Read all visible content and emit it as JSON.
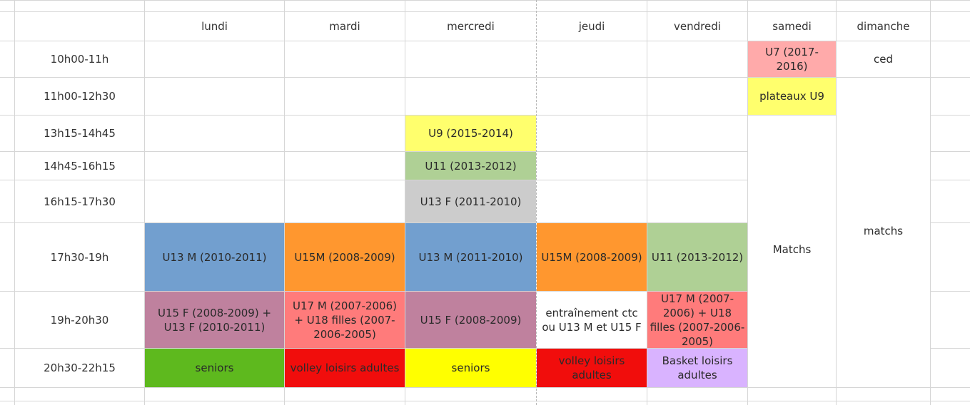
{
  "days": [
    "lundi",
    "mardi",
    "mercredi",
    "jeudi",
    "vendredi",
    "samedi",
    "dimanche"
  ],
  "times": [
    "10h00-11h",
    "11h00-12h30",
    "13h15-14h45",
    "14h45-16h15",
    "16h15-17h30",
    "17h30-19h",
    "19h-20h30",
    "20h30-22h15"
  ],
  "colors": {
    "blue": "#729fcf",
    "orange": "#ff972f",
    "green_light": "#afd095",
    "grey": "#cccccc",
    "yellow_soft": "#ffff6d",
    "yellow": "#ffff00",
    "purple": "#bf819e",
    "salmon": "#ff7b7b",
    "pink_light": "#ffaaaa",
    "green": "#5eb91e",
    "red": "#f10d0c",
    "lavender": "#d9b3ff"
  },
  "slots": [
    {
      "id": "sam-u7",
      "text": "U7 (2017-2016)",
      "color": "#ffaaaa"
    },
    {
      "id": "dim-ced",
      "text": "ced",
      "color": ""
    },
    {
      "id": "sam-plateaux",
      "text": "plateaux U9",
      "color": "#ffff6d"
    },
    {
      "id": "mer-u9",
      "text": "U9 (2015-2014)",
      "color": "#ffff6d"
    },
    {
      "id": "mer-u11",
      "text": "U11 (2013-2012)",
      "color": "#afd095"
    },
    {
      "id": "mer-u13f",
      "text": "U13 F (2011-2010)",
      "color": "#cccccc"
    },
    {
      "id": "lun-u13m",
      "text": "U13 M (2010-2011)",
      "color": "#729fcf"
    },
    {
      "id": "mar-u15m",
      "text": "U15M (2008-2009)",
      "color": "#ff972f"
    },
    {
      "id": "mer-u13m",
      "text": "U13 M (2011-2010)",
      "color": "#729fcf"
    },
    {
      "id": "jeu-u15m",
      "text": "U15M (2008-2009)",
      "color": "#ff972f"
    },
    {
      "id": "ven-u11",
      "text": "U11 (2013-2012)",
      "color": "#afd095"
    },
    {
      "id": "sam-matchs",
      "text": "Matchs",
      "color": ""
    },
    {
      "id": "dim-matchs",
      "text": "matchs",
      "color": ""
    },
    {
      "id": "lun-u15f",
      "text": "U15 F (2008-2009) + U13 F (2010-2011)",
      "color": "#bf819e"
    },
    {
      "id": "mar-u17",
      "text": "U17 M (2007-2006) + U18 filles (2007-2006-2005)",
      "color": "#ff7b7b"
    },
    {
      "id": "mer-u15f",
      "text": "U15 F (2008-2009)",
      "color": "#bf819e"
    },
    {
      "id": "jeu-ctc",
      "text": "entraînement ctc ou U13 M et U15 F",
      "color": ""
    },
    {
      "id": "ven-u17",
      "text": "U17 M (2007-2006) + U18 filles (2007-2006-2005)",
      "color": "#ff7b7b"
    },
    {
      "id": "lun-seniors",
      "text": "seniors",
      "color": "#5eb91e"
    },
    {
      "id": "mar-volley",
      "text": "volley loisirs adultes",
      "color": "#f10d0c"
    },
    {
      "id": "mer-seniors",
      "text": "seniors",
      "color": "#ffff00"
    },
    {
      "id": "jeu-volley",
      "text": "volley loisirs adultes",
      "color": "#f10d0c"
    },
    {
      "id": "ven-basket",
      "text": "Basket loisirs adultes",
      "color": "#d9b3ff"
    }
  ]
}
